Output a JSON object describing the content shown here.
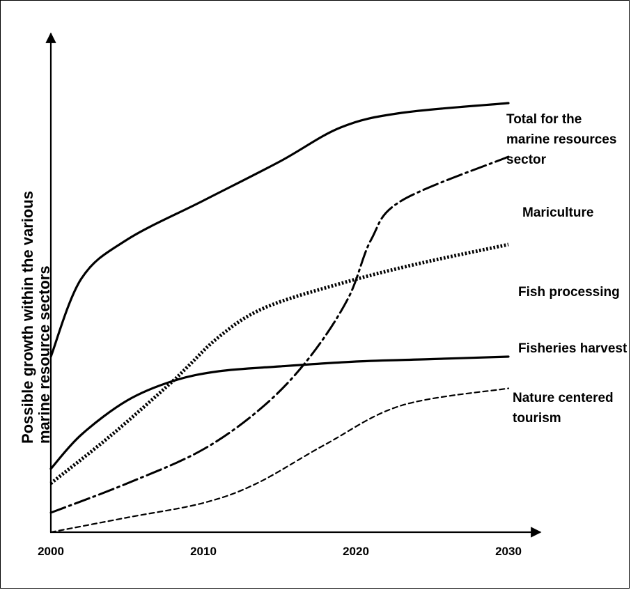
{
  "chart_data": {
    "type": "line",
    "title": "",
    "xlabel": "",
    "ylabel": "Possible growth within the various marine resource sectors",
    "ylabel_lines": [
      "Possible growth within the various",
      "marine resource sectors"
    ],
    "x_ticks": [
      "2000",
      "2010",
      "2020",
      "2030"
    ],
    "xlim": [
      2000,
      2032
    ],
    "ylim": [
      0,
      100
    ],
    "grid": false,
    "legend": "none",
    "series": [
      {
        "name": "Total for the marine resources sector",
        "label_lines": [
          "Total  for the",
          "marine resources",
          "sector"
        ],
        "style": "solid",
        "x": [
          2000,
          2002,
          2005,
          2010,
          2015,
          2019,
          2023,
          2030
        ],
        "y": [
          36,
          52,
          60,
          68,
          76,
          83,
          86,
          88
        ]
      },
      {
        "name": "Mariculture",
        "label_lines": [
          "Mariculture"
        ],
        "style": "dashdot",
        "x": [
          2000,
          2005,
          2010,
          2014,
          2017,
          2019.5,
          2021,
          2023,
          2030
        ],
        "y": [
          4,
          10,
          17,
          26,
          36,
          48,
          60,
          68,
          77
        ]
      },
      {
        "name": "Fish processing",
        "label_lines": [
          "Fish processing"
        ],
        "style": "dotted",
        "x": [
          2000,
          2004,
          2008,
          2011,
          2014,
          2019,
          2024,
          2030
        ],
        "y": [
          10,
          20,
          31,
          40,
          46,
          51,
          55,
          59
        ]
      },
      {
        "name": "Fisheries harvest",
        "label_lines": [
          "Fisheries harvest"
        ],
        "style": "solid",
        "x": [
          2000,
          2002,
          2005,
          2008,
          2011,
          2015,
          2020,
          2025,
          2030
        ],
        "y": [
          13,
          20,
          27,
          31,
          33,
          34,
          35,
          35.5,
          36
        ]
      },
      {
        "name": "Nature centered tourism",
        "label_lines": [
          "Nature centered",
          "tourism"
        ],
        "style": "dashed",
        "x": [
          2000,
          2005,
          2010,
          2013.5,
          2018,
          2023,
          2030
        ],
        "y": [
          0,
          3,
          6,
          10,
          18,
          26,
          29.5
        ]
      }
    ]
  }
}
